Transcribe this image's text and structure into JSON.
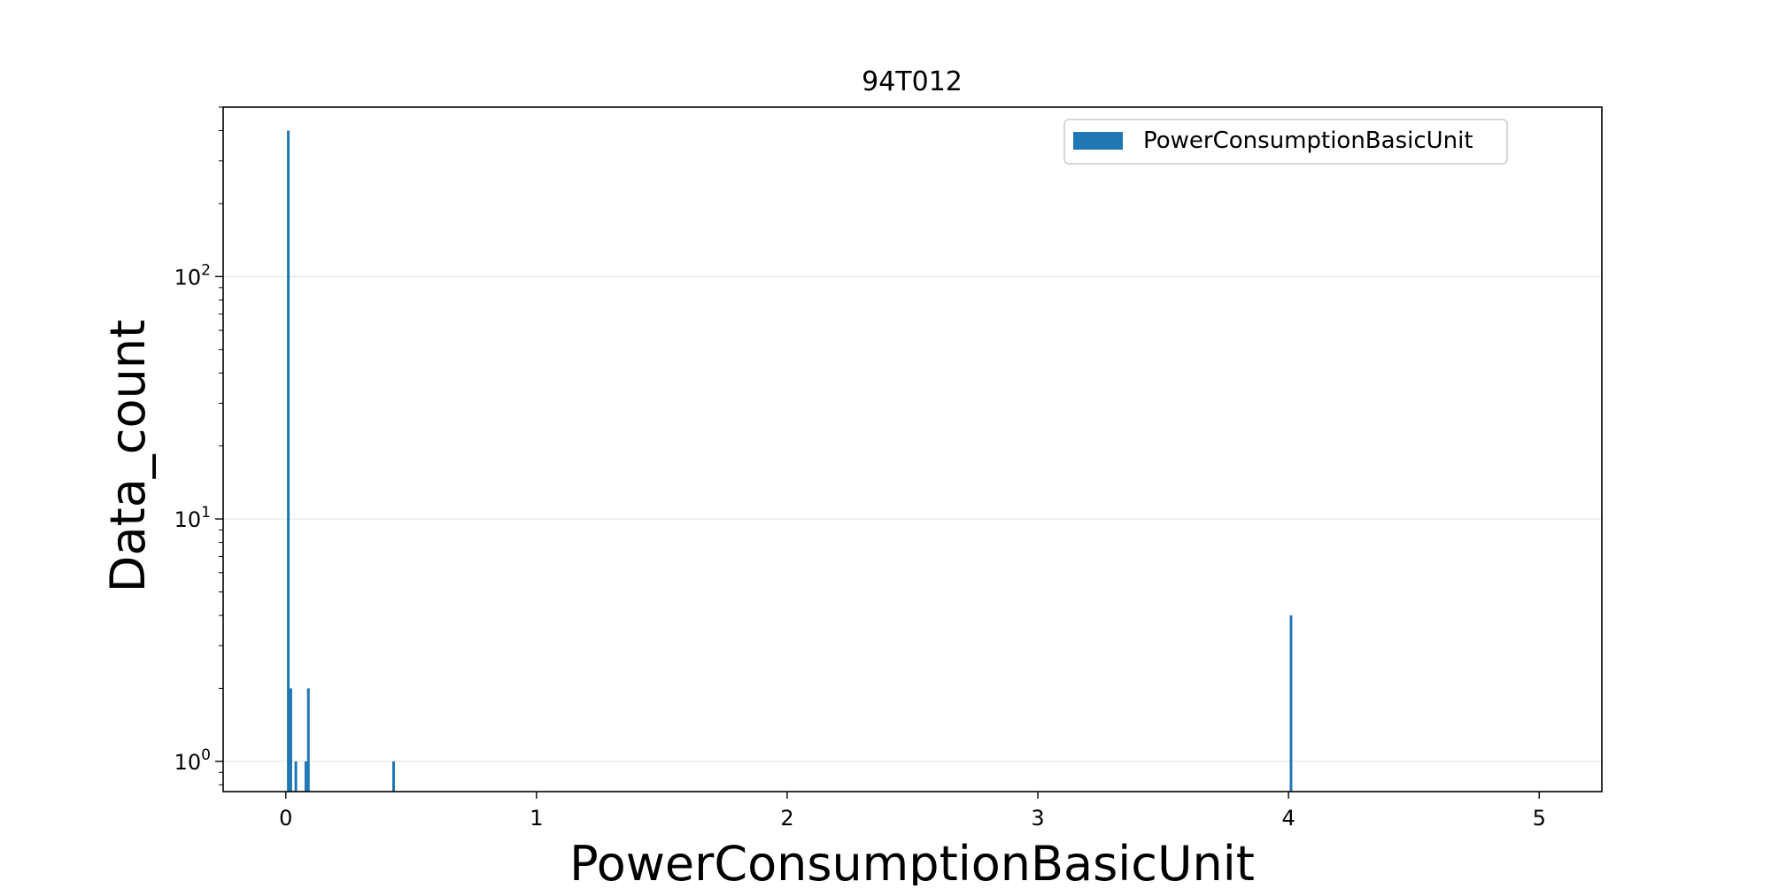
{
  "chart_data": {
    "type": "bar",
    "title": "94T012",
    "xlabel": "PowerConsumptionBasicUnit",
    "ylabel": "Data_count",
    "xlim": [
      -0.25,
      5.25
    ],
    "ylim": [
      0.75,
      500
    ],
    "yscale": "log",
    "grid": "y",
    "legend_position": "top-right",
    "color": "#1f77b4",
    "series": [
      {
        "name": "PowerConsumptionBasicUnit",
        "x": [
          0.01,
          0.02,
          0.04,
          0.08,
          0.09,
          0.43,
          4.01
        ],
        "values": [
          400,
          2,
          1,
          1,
          2,
          1,
          4
        ]
      }
    ],
    "x_ticks": [
      0,
      1,
      2,
      3,
      4,
      5
    ],
    "y_ticks": [
      {
        "value": 1,
        "base": "10",
        "exp": "0"
      },
      {
        "value": 10,
        "base": "10",
        "exp": "1"
      },
      {
        "value": 100,
        "base": "10",
        "exp": "2"
      }
    ]
  }
}
